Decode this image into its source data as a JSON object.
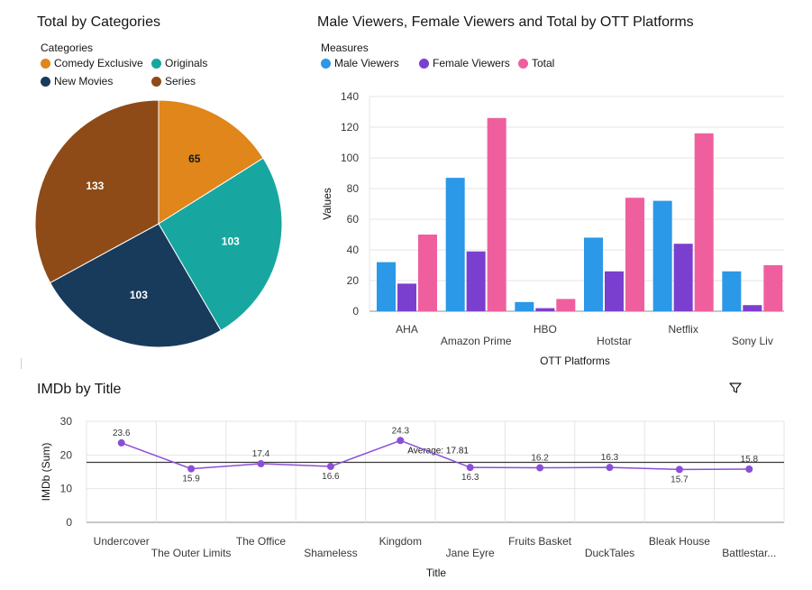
{
  "pie": {
    "title": "Total by Categories",
    "legend_title": "Categories",
    "legend": [
      {
        "label": "Comedy Exclusive",
        "color": "#e0861a"
      },
      {
        "label": "Originals",
        "color": "#17a7a0"
      },
      {
        "label": "New Movies",
        "color": "#183b5c"
      },
      {
        "label": "Series",
        "color": "#8e4b17"
      }
    ]
  },
  "bar": {
    "title": "Male Viewers, Female Viewers and Total by OTT Platforms",
    "legend_title": "Measures",
    "legend": [
      {
        "label": "Male Viewers",
        "color": "#2b98e8"
      },
      {
        "label": "Female Viewers",
        "color": "#7b3fcf"
      },
      {
        "label": "Total",
        "color": "#ef5f9e"
      }
    ]
  },
  "line": {
    "title": "IMDb by Title",
    "average_label": "Average: 17.81"
  },
  "chart_data": [
    {
      "type": "pie",
      "title": "Total by Categories",
      "categories": [
        "Comedy Exclusive",
        "Originals",
        "New Movies",
        "Series"
      ],
      "values": [
        65,
        103,
        103,
        133
      ],
      "colors": [
        "#e0861a",
        "#17a7a0",
        "#183b5c",
        "#8e4b17"
      ]
    },
    {
      "type": "bar",
      "title": "Male Viewers, Female Viewers and Total by OTT Platforms",
      "categories": [
        "AHA",
        "Amazon Prime",
        "HBO",
        "Hotstar",
        "Netflix",
        "Sony Liv"
      ],
      "series": [
        {
          "name": "Male Viewers",
          "values": [
            32,
            87,
            6,
            48,
            72,
            26
          ],
          "color": "#2b98e8"
        },
        {
          "name": "Female Viewers",
          "values": [
            18,
            39,
            2,
            26,
            44,
            4
          ],
          "color": "#7b3fcf"
        },
        {
          "name": "Total",
          "values": [
            50,
            126,
            8,
            74,
            116,
            30
          ],
          "color": "#ef5f9e"
        }
      ],
      "xlabel": "OTT Platforms",
      "ylabel": "Values",
      "ylim": [
        0,
        140
      ],
      "yticks": [
        0,
        20,
        40,
        60,
        80,
        100,
        120,
        140
      ],
      "grid": true,
      "legend": "top-left"
    },
    {
      "type": "line",
      "title": "IMDb by Title",
      "categories": [
        "Undercover",
        "The Outer Limits",
        "The Office",
        "Shameless",
        "Kingdom",
        "Jane Eyre",
        "Fruits Basket",
        "DuckTales",
        "Bleak House",
        "Battlestar..."
      ],
      "values": [
        23.6,
        15.9,
        17.4,
        16.6,
        24.3,
        16.3,
        16.2,
        16.3,
        15.7,
        15.8
      ],
      "value_labels": [
        "23.6",
        "15.9",
        "17.4",
        "16.6",
        "24.3",
        "16.3",
        "16.2",
        "16.3",
        "15.7",
        "15.8"
      ],
      "average": 17.81,
      "xlabel": "Title",
      "ylabel": "IMDb (Sum)",
      "ylim": [
        0,
        30
      ],
      "yticks": [
        0,
        10,
        20,
        30
      ],
      "color": "#8a4fd6",
      "grid": true
    }
  ]
}
